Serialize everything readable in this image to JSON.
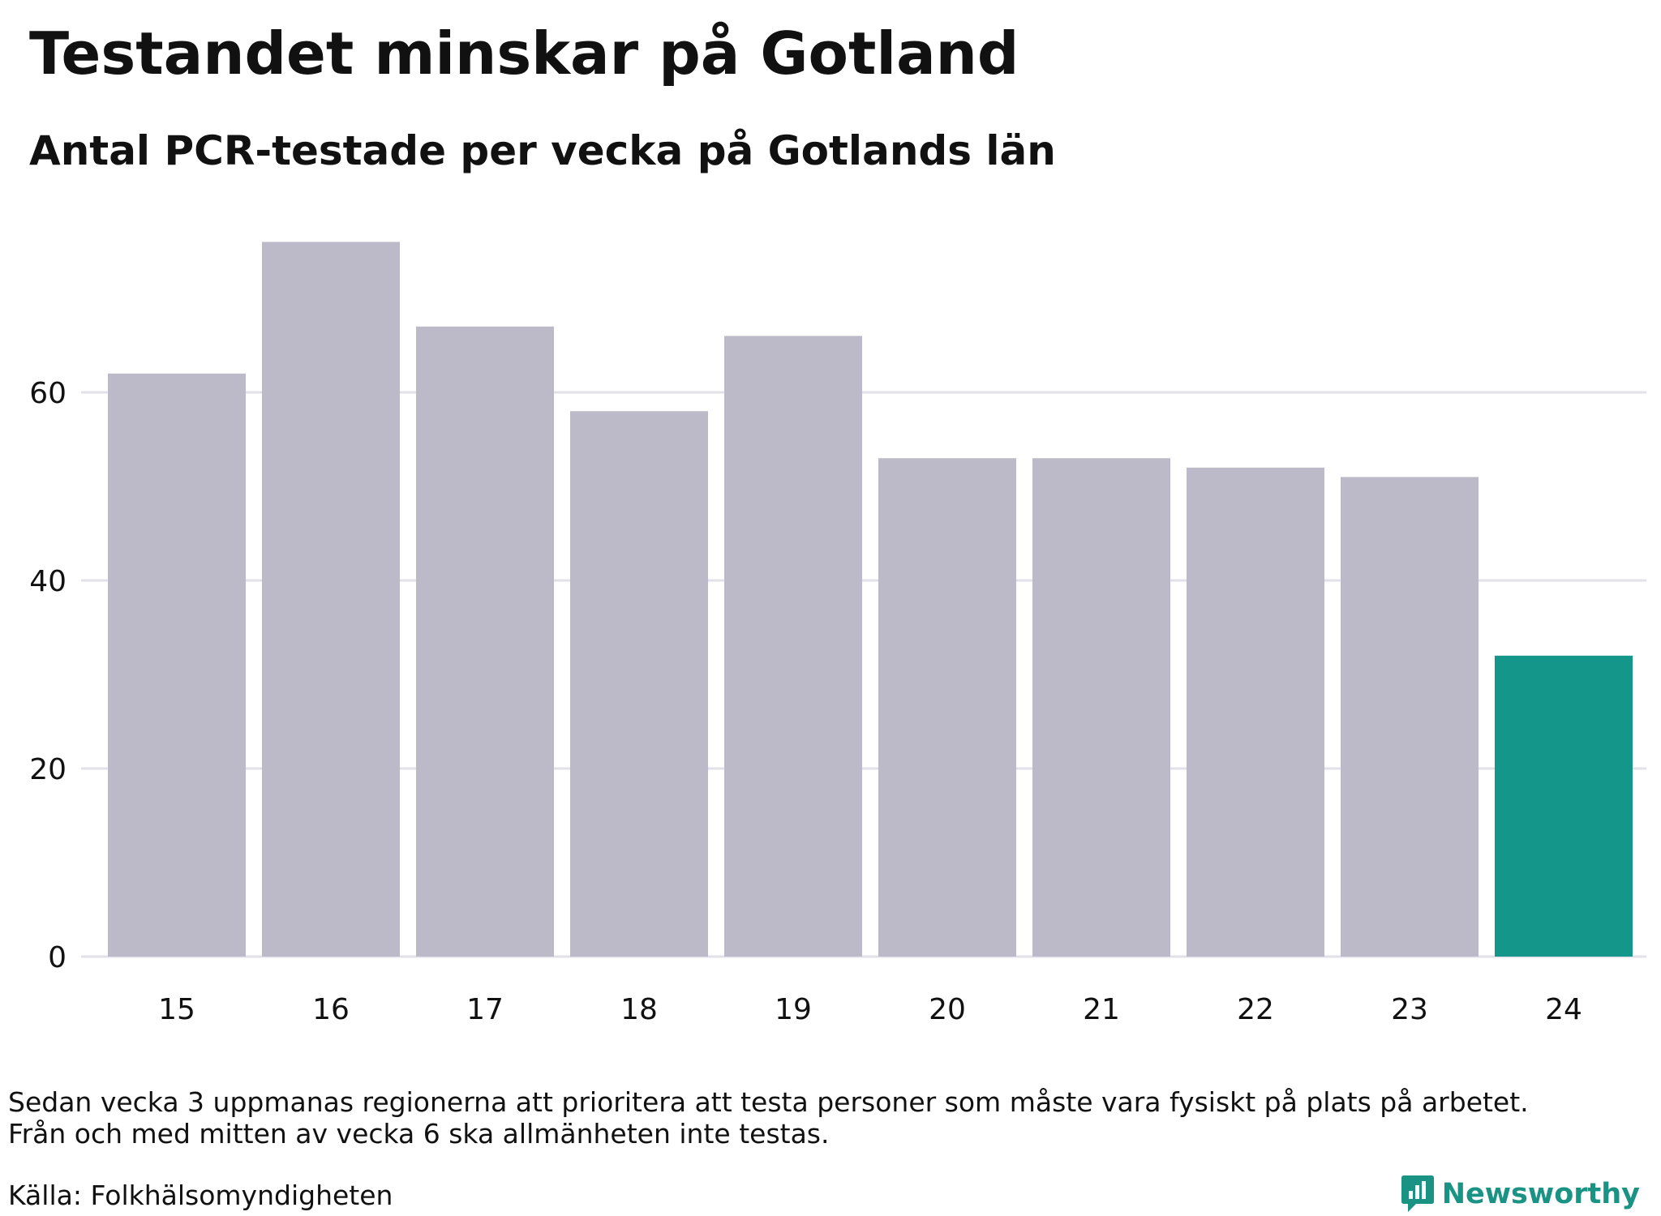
{
  "title": "Testandet minskar på Gotland",
  "subtitle": "Antal PCR-testade per vecka på Gotlands län",
  "note_lines": [
    "Sedan vecka 3 uppmanas regionerna att prioritera att testa personer som måste vara fysiskt på plats på arbetet.",
    "Från och med mitten av vecka 6 ska allmänheten inte testas."
  ],
  "source": "Källa: Folkhälsomyndigheten",
  "brand": {
    "name": "Newsworthy",
    "icon": "newsworthy-logo-icon"
  },
  "colors": {
    "bar": "#bcbac8",
    "highlight": "#14968a",
    "grid": "#e2e1e8",
    "brand": "#1a9384"
  },
  "chart_data": {
    "type": "bar",
    "categories": [
      "15",
      "16",
      "17",
      "18",
      "19",
      "20",
      "21",
      "22",
      "23",
      "24"
    ],
    "values": [
      62,
      76,
      67,
      58,
      66,
      53,
      53,
      52,
      51,
      32
    ],
    "highlight_index": 9,
    "title": "Testandet minskar på Gotland",
    "subtitle": "Antal PCR-testade per vecka på Gotlands län",
    "xlabel": "",
    "ylabel": "",
    "yticks": [
      0,
      20,
      40,
      60
    ],
    "ylim": [
      0,
      80
    ],
    "grid": true,
    "legend": "none"
  }
}
